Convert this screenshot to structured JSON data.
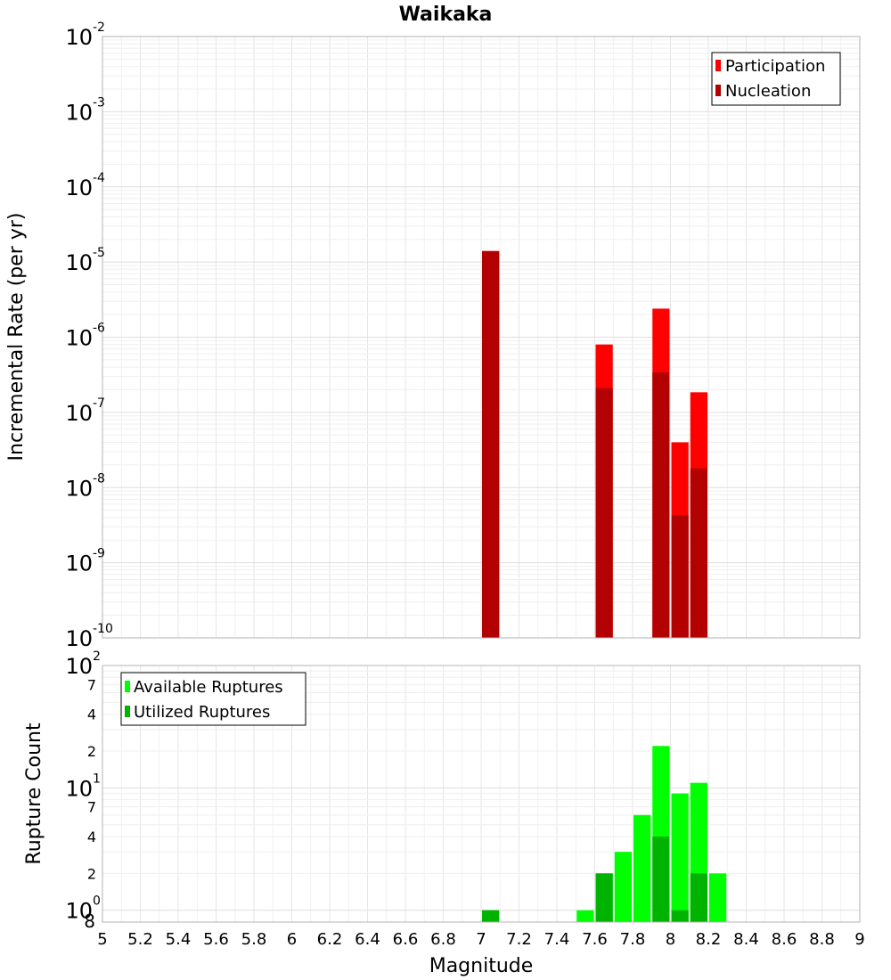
{
  "chart_data": {
    "title": "Waikaka",
    "xlabel": "Magnitude",
    "xlim": [
      5,
      9
    ],
    "x_ticks": [
      "5",
      "5.2",
      "5.4",
      "5.6",
      "5.8",
      "6",
      "6.2",
      "6.4",
      "6.6",
      "6.8",
      "7",
      "7.2",
      "7.4",
      "7.6",
      "7.8",
      "8",
      "8.2",
      "8.4",
      "8.6",
      "8.8",
      "9"
    ],
    "bin_width": 0.1,
    "panels": [
      {
        "type": "bar",
        "ylabel": "Incremental Rate (per yr)",
        "yscale": "log",
        "ylim": [
          1e-10,
          0.01
        ],
        "legend_position": "top-right",
        "y_tick_bases": [
          "10",
          "10",
          "10",
          "10",
          "10",
          "10",
          "10",
          "10",
          "10"
        ],
        "y_tick_exponents": [
          "-10",
          "-9",
          "-8",
          "-7",
          "-6",
          "-5",
          "-4",
          "-3",
          "-2"
        ],
        "series": [
          {
            "name": "Participation",
            "color": "#ff0000",
            "x": [
              7.05,
              7.65,
              7.95,
              8.05,
              8.15
            ],
            "values": [
              1.4e-05,
              8e-07,
              2.4e-06,
              4e-08,
              1.85e-07
            ]
          },
          {
            "name": "Nucleation",
            "color": "#b30000",
            "x": [
              7.05,
              7.65,
              7.95,
              8.05,
              8.15
            ],
            "values": [
              1.4e-05,
              2.1e-07,
              3.4e-07,
              4.3e-09,
              1.8e-08
            ]
          }
        ]
      },
      {
        "type": "bar",
        "ylabel": "Rupture Count",
        "yscale": "log",
        "ylim": [
          0.8,
          100
        ],
        "legend_position": "top-left",
        "y_major_ticks": [
          {
            "value": 1,
            "base": "10",
            "exp": "0"
          },
          {
            "value": 10,
            "base": "10",
            "exp": "1"
          },
          {
            "value": 100,
            "base": "10",
            "exp": "2"
          }
        ],
        "y_minor_ticks": [
          {
            "value": 0.8,
            "label": "8"
          },
          {
            "value": 2,
            "label": "2"
          },
          {
            "value": 4,
            "label": "4"
          },
          {
            "value": 7,
            "label": "7"
          },
          {
            "value": 20,
            "label": "2"
          },
          {
            "value": 40,
            "label": "4"
          },
          {
            "value": 70,
            "label": "7"
          }
        ],
        "series": [
          {
            "name": "Available Ruptures",
            "color": "#00ff00",
            "x": [
              7.05,
              7.55,
              7.65,
              7.75,
              7.85,
              7.95,
              8.05,
              8.15,
              8.25
            ],
            "values": [
              1,
              1,
              2,
              3,
              6,
              22,
              9,
              11,
              2
            ]
          },
          {
            "name": "Utilized Ruptures",
            "color": "#00b300",
            "x": [
              7.05,
              7.65,
              7.95,
              8.05,
              8.15
            ],
            "values": [
              1,
              2,
              4,
              1,
              2
            ]
          }
        ]
      }
    ]
  }
}
